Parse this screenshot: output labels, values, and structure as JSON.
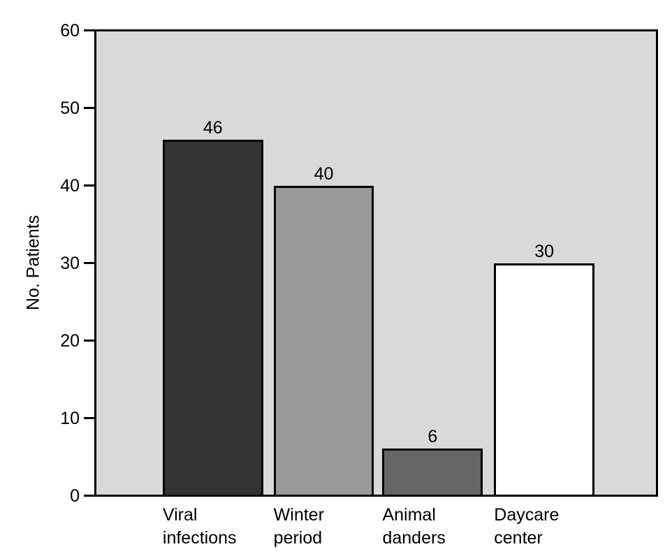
{
  "chart_data": {
    "type": "bar",
    "title": "",
    "xlabel": "",
    "ylabel": "No. Patients",
    "ylim": [
      0,
      60
    ],
    "yticks": [
      0,
      10,
      20,
      30,
      40,
      50,
      60
    ],
    "categories": [
      "Viral infections",
      "Winter period",
      "Animal danders",
      "Daycare center"
    ],
    "categories_display": [
      "Viral\ninfections",
      "Winter\nperiod",
      "Animal\ndanders",
      "Daycare\ncenter"
    ],
    "values": [
      46,
      40,
      6,
      30
    ],
    "bar_colors": [
      "#333333",
      "#999999",
      "#666666",
      "#ffffff"
    ],
    "bar_border_color": "#000000",
    "plot_background": "#d9d9d9",
    "axis_color": "#000000",
    "text_color": "#000000",
    "grid": false,
    "legend_position": "none"
  }
}
